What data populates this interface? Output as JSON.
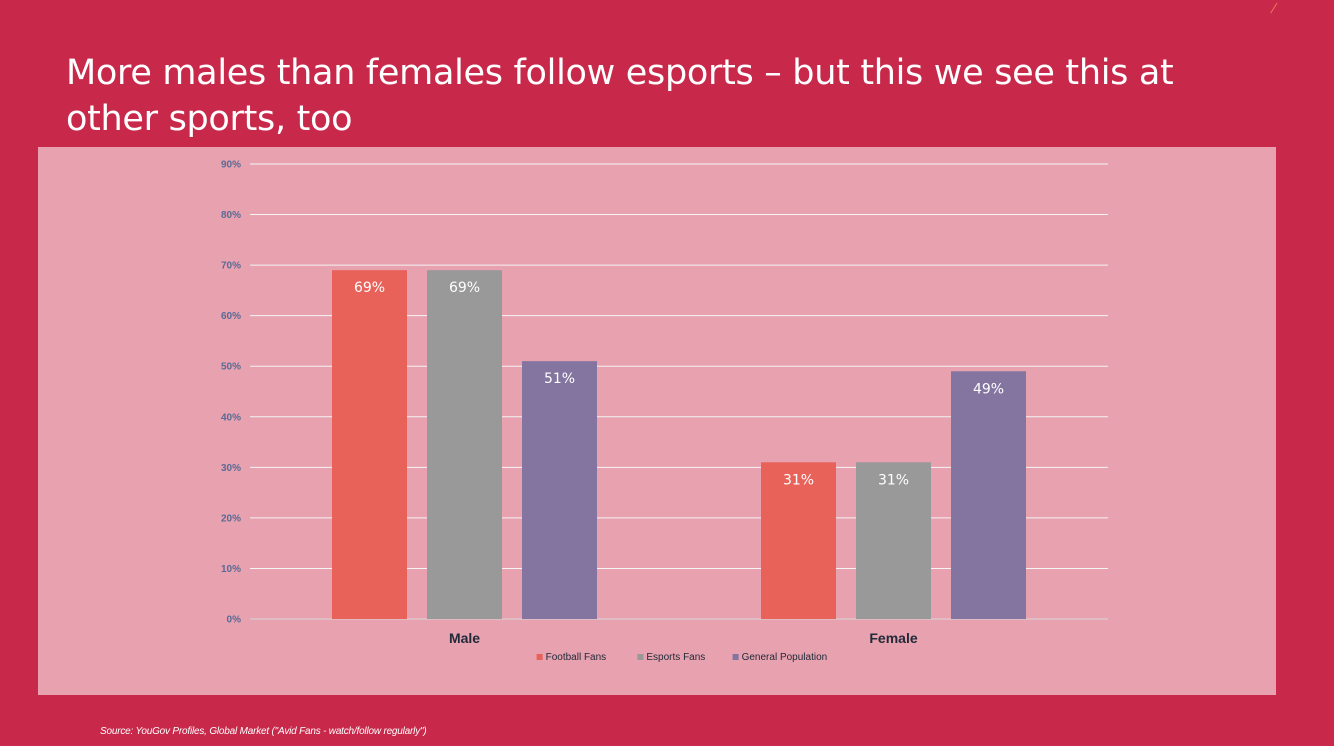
{
  "slide": {
    "title": "More males than females follow esports – but this we see this at other sports, too",
    "corner_mark": "/",
    "source": "Source: YouGov Profiles, Global Market (\"Avid Fans - watch/follow regularly\")"
  },
  "colors": {
    "background": "#c8284a",
    "chart_panel": "#e7a1af",
    "gridline": "#f4f4f4",
    "football": "#e8625a",
    "esports": "#999999",
    "general": "#8374a0"
  },
  "chart_data": {
    "type": "bar",
    "categories": [
      "Male",
      "Female"
    ],
    "series": [
      {
        "name": "Football Fans",
        "values": [
          69,
          31
        ],
        "labels": [
          "69%",
          "31%"
        ],
        "color": "#e8625a"
      },
      {
        "name": "Esports Fans",
        "values": [
          69,
          31
        ],
        "labels": [
          "69%",
          "31%"
        ],
        "color": "#999999"
      },
      {
        "name": "General Population",
        "values": [
          51,
          49
        ],
        "labels": [
          "51%",
          "49%"
        ],
        "color": "#8374a0"
      }
    ],
    "ylim": [
      0,
      90
    ],
    "yticks": [
      0,
      10,
      20,
      30,
      40,
      50,
      60,
      70,
      80,
      90
    ],
    "ytick_labels": [
      "0%",
      "10%",
      "20%",
      "30%",
      "40%",
      "50%",
      "60%",
      "70%",
      "80%",
      "90%"
    ],
    "grid": true,
    "legend": "bottom-center",
    "title": "",
    "xlabel": "",
    "ylabel": ""
  }
}
